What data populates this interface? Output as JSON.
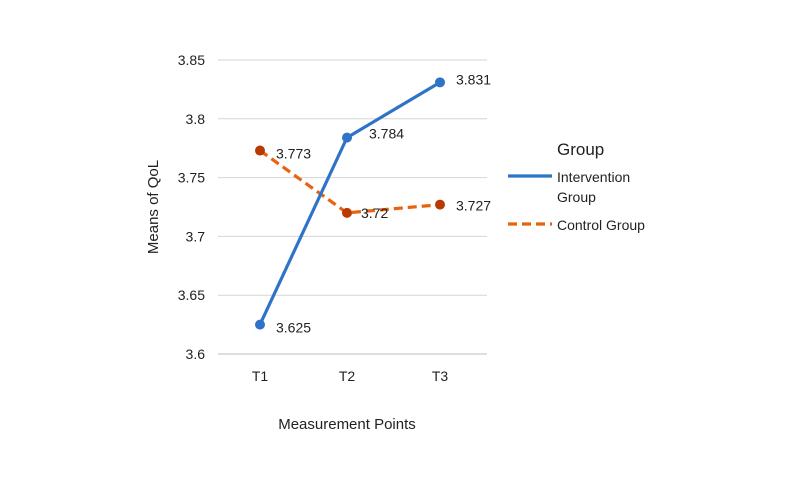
{
  "chart_data": {
    "type": "line",
    "title": "",
    "xlabel": "Measurement Points",
    "ylabel": "Means of QoL",
    "categories": [
      "T1",
      "T2",
      "T3"
    ],
    "ylim": [
      3.6,
      3.85
    ],
    "yticks": [
      "3.6",
      "3.65",
      "3.7",
      "3.75",
      "3.8",
      "3.85"
    ],
    "grid": "horizontal",
    "legend": {
      "title": "Group",
      "placement": "right"
    },
    "series": [
      {
        "name": "Intervention Group",
        "name_lines": [
          "Intervention",
          "Group"
        ],
        "values": [
          3.625,
          3.784,
          3.831
        ],
        "labels": [
          "3.625",
          "3.784",
          "3.831"
        ],
        "color": "#2f73c9",
        "line_style": "solid"
      },
      {
        "name": "Control Group",
        "name_lines": [
          "Control Group"
        ],
        "values": [
          3.773,
          3.72,
          3.727
        ],
        "labels": [
          "3.773",
          "3.72",
          "3.727"
        ],
        "color": "#e8620f",
        "marker_color": "#b83a00",
        "line_style": "dashed"
      }
    ]
  }
}
